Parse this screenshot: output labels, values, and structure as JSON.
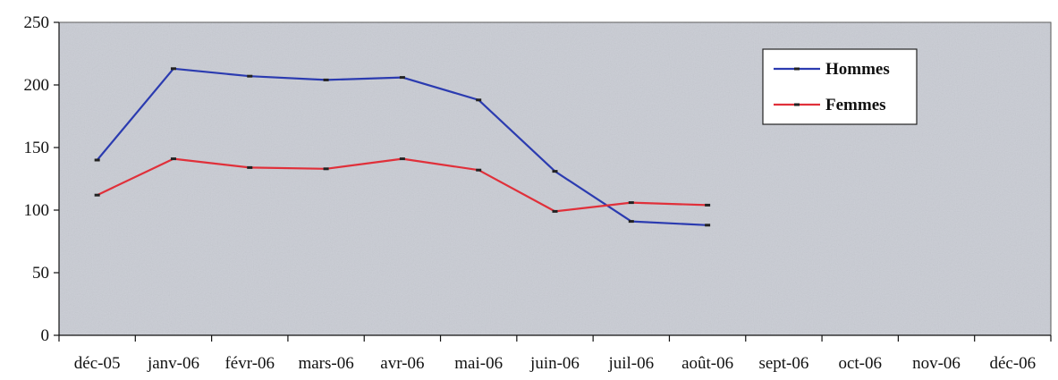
{
  "chart_data": {
    "type": "line",
    "categories": [
      "déc-05",
      "janv-06",
      "févr-06",
      "mars-06",
      "avr-06",
      "mai-06",
      "juin-06",
      "juil-06",
      "août-06",
      "sept-06",
      "oct-06",
      "nov-06",
      "déc-06"
    ],
    "series": [
      {
        "name": "Hommes",
        "color": "#2b3bb0",
        "values": [
          140,
          213,
          207,
          204,
          206,
          188,
          131,
          91,
          88,
          null,
          null,
          null,
          null
        ]
      },
      {
        "name": "Femmes",
        "color": "#e0303a",
        "values": [
          112,
          141,
          134,
          133,
          141,
          132,
          99,
          106,
          104,
          null,
          null,
          null,
          null
        ]
      }
    ],
    "ylim": [
      0,
      250
    ],
    "yticks": [
      0,
      50,
      100,
      150,
      200,
      250
    ],
    "grid": false,
    "legend_position": "top-right",
    "plot_background": "#c9ccd4",
    "marker_color": "#222222"
  }
}
